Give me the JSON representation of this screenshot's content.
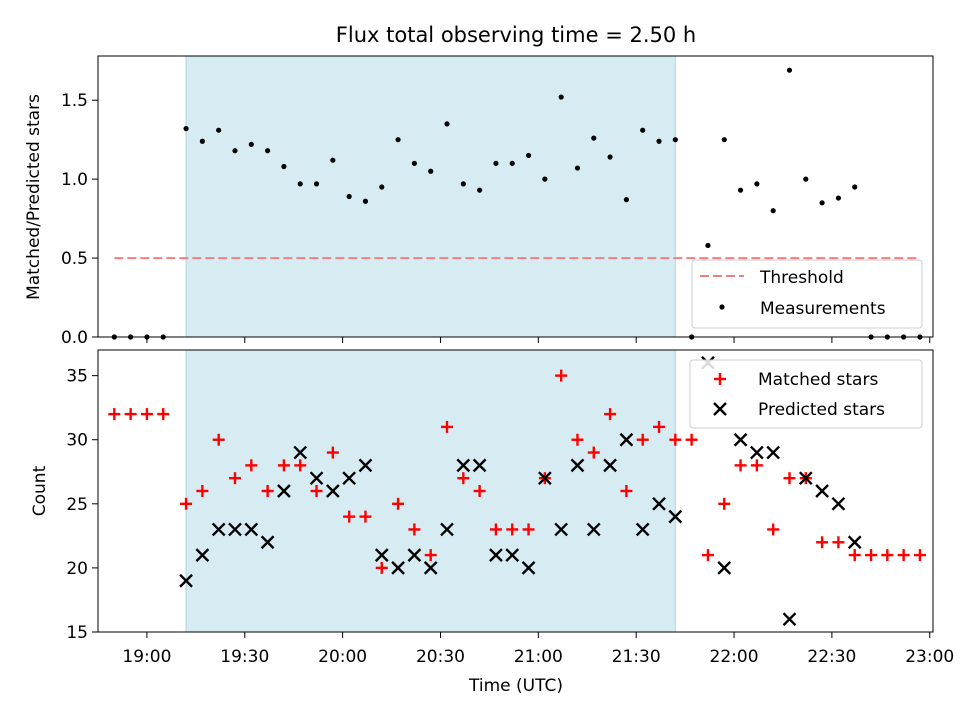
{
  "chart_data": [
    {
      "type": "scatter",
      "title": "Flux total observing time = 2.50 h",
      "xlabel": "",
      "ylabel": "Matched/Predicted stars",
      "xlim": [
        "18:45",
        "23:01"
      ],
      "ylim": [
        0,
        1.78
      ],
      "x_ticks": [
        "19:00",
        "19:30",
        "20:00",
        "20:30",
        "21:00",
        "21:30",
        "22:00",
        "22:30",
        "23:00"
      ],
      "y_ticks": [
        0.0,
        0.5,
        1.0,
        1.5
      ],
      "y_tick_labels": [
        "0.0",
        "0.5",
        "1.0",
        "1.5"
      ],
      "shaded_span": [
        "19:12",
        "21:42"
      ],
      "shade_color": "#add8e6",
      "threshold": {
        "name": "Threshold",
        "y": 0.5,
        "x_range": [
          "18:50",
          "22:57"
        ],
        "color": "#f08080",
        "style": "dashed"
      },
      "legend": {
        "position": "lower-right"
      },
      "series": [
        {
          "name": "Measurements",
          "color": "#000000",
          "marker": "dot",
          "x": [
            "18:50",
            "18:55",
            "19:00",
            "19:05",
            "19:12",
            "19:17",
            "19:22",
            "19:27",
            "19:32",
            "19:37",
            "19:42",
            "19:47",
            "19:52",
            "19:57",
            "20:02",
            "20:07",
            "20:12",
            "20:17",
            "20:22",
            "20:27",
            "20:32",
            "20:37",
            "20:42",
            "20:47",
            "20:52",
            "20:57",
            "21:02",
            "21:07",
            "21:12",
            "21:17",
            "21:22",
            "21:27",
            "21:32",
            "21:37",
            "21:42",
            "21:47",
            "21:52",
            "21:57",
            "22:02",
            "22:07",
            "22:12",
            "22:17",
            "22:22",
            "22:27",
            "22:32",
            "22:37",
            "22:42",
            "22:47",
            "22:52",
            "22:57"
          ],
          "y": [
            0.0,
            0.0,
            0.0,
            0.0,
            1.32,
            1.24,
            1.31,
            1.18,
            1.22,
            1.18,
            1.08,
            0.97,
            0.97,
            1.12,
            0.89,
            0.86,
            0.95,
            1.25,
            1.1,
            1.05,
            1.35,
            0.97,
            0.93,
            1.1,
            1.1,
            1.15,
            1.0,
            1.52,
            1.07,
            1.26,
            1.14,
            0.87,
            1.31,
            1.24,
            1.25,
            0.0,
            0.58,
            1.25,
            0.93,
            0.97,
            0.8,
            1.69,
            1.0,
            0.85,
            0.88,
            0.95,
            0.0,
            0.0,
            0.0,
            0.0
          ]
        }
      ]
    },
    {
      "type": "scatter",
      "title": "",
      "xlabel": "Time (UTC)",
      "ylabel": "Count",
      "xlim": [
        "18:45",
        "23:01"
      ],
      "ylim": [
        15,
        37
      ],
      "x_ticks": [
        "19:00",
        "19:30",
        "20:00",
        "20:30",
        "21:00",
        "21:30",
        "22:00",
        "22:30",
        "23:00"
      ],
      "y_ticks": [
        15,
        20,
        25,
        30,
        35
      ],
      "shaded_span": [
        "19:12",
        "21:42"
      ],
      "shade_color": "#add8e6",
      "legend": {
        "position": "top-right"
      },
      "series": [
        {
          "name": "Matched stars",
          "color": "#ff0000",
          "marker": "plus",
          "x": [
            "18:50",
            "18:55",
            "19:00",
            "19:05",
            "19:12",
            "19:17",
            "19:22",
            "19:27",
            "19:32",
            "19:37",
            "19:42",
            "19:47",
            "19:52",
            "19:57",
            "20:02",
            "20:07",
            "20:12",
            "20:17",
            "20:22",
            "20:27",
            "20:32",
            "20:37",
            "20:42",
            "20:47",
            "20:52",
            "20:57",
            "21:02",
            "21:07",
            "21:12",
            "21:17",
            "21:22",
            "21:27",
            "21:32",
            "21:37",
            "21:42",
            "21:47",
            "21:52",
            "21:57",
            "22:02",
            "22:07",
            "22:12",
            "22:17",
            "22:22",
            "22:27",
            "22:32",
            "22:37",
            "22:42",
            "22:47",
            "22:52",
            "22:57"
          ],
          "y": [
            32,
            32,
            32,
            32,
            25,
            26,
            30,
            27,
            28,
            26,
            28,
            28,
            26,
            29,
            24,
            24,
            20,
            25,
            23,
            21,
            31,
            27,
            26,
            23,
            23,
            23,
            27,
            35,
            30,
            29,
            32,
            26,
            30,
            31,
            30,
            30,
            21,
            25,
            28,
            28,
            23,
            27,
            27,
            22,
            22,
            21,
            21,
            21,
            21,
            21
          ]
        },
        {
          "name": "Predicted stars",
          "color": "#000000",
          "marker": "x",
          "x": [
            "19:12",
            "19:17",
            "19:22",
            "19:27",
            "19:32",
            "19:37",
            "19:42",
            "19:47",
            "19:52",
            "19:57",
            "20:02",
            "20:07",
            "20:12",
            "20:17",
            "20:22",
            "20:27",
            "20:32",
            "20:37",
            "20:42",
            "20:47",
            "20:52",
            "20:57",
            "21:02",
            "21:07",
            "21:12",
            "21:17",
            "21:22",
            "21:27",
            "21:32",
            "21:37",
            "21:42",
            "21:52",
            "21:57",
            "22:02",
            "22:07",
            "22:12",
            "22:17",
            "22:22",
            "22:27",
            "22:32",
            "22:37"
          ],
          "y": [
            19,
            21,
            23,
            23,
            23,
            22,
            26,
            29,
            27,
            26,
            27,
            28,
            21,
            20,
            21,
            20,
            23,
            28,
            28,
            21,
            21,
            20,
            27,
            23,
            28,
            23,
            28,
            30,
            23,
            25,
            24,
            36,
            20,
            30,
            29,
            29,
            16,
            27,
            26,
            25,
            22
          ]
        }
      ]
    }
  ]
}
